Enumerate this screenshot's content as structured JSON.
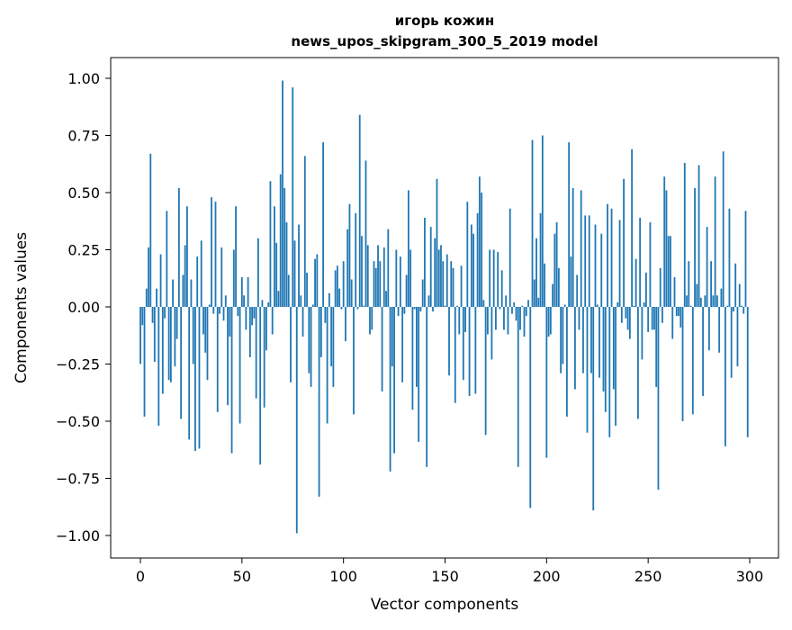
{
  "chart_data": {
    "type": "bar",
    "title": "игорь кожин",
    "subtitle": "news_upos_skipgram_300_5_2019 model",
    "xlabel": "Vector components",
    "ylabel": "Components values",
    "xlim": [
      -15,
      315
    ],
    "ylim": [
      -1.1,
      1.08
    ],
    "xticks": [
      0,
      50,
      100,
      150,
      200,
      250,
      300
    ],
    "xtick_labels": [
      "0",
      "50",
      "100",
      "150",
      "200",
      "250",
      "300"
    ],
    "yticks": [
      1.0,
      0.75,
      0.5,
      0.25,
      0.0,
      -0.25,
      -0.5,
      -0.75,
      -1.0
    ],
    "ytick_labels": [
      "1.00",
      "0.75",
      "0.50",
      "0.25",
      "0.00",
      "−0.25",
      "−0.50",
      "−0.75",
      "−1.00"
    ],
    "grid": false,
    "bar_color": "#1f77b4",
    "values": [
      -0.25,
      -0.08,
      -0.48,
      0.08,
      0.26,
      0.67,
      -0.07,
      -0.24,
      0.08,
      -0.52,
      0.23,
      -0.38,
      -0.05,
      0.42,
      -0.32,
      -0.33,
      0.12,
      -0.26,
      -0.14,
      0.52,
      -0.49,
      0.14,
      0.27,
      0.44,
      -0.58,
      0.12,
      -0.25,
      -0.63,
      0.22,
      -0.62,
      0.29,
      -0.12,
      -0.2,
      -0.32,
      0.01,
      0.48,
      -0.03,
      0.46,
      -0.46,
      -0.03,
      0.26,
      -0.06,
      0.05,
      -0.43,
      -0.13,
      -0.64,
      0.25,
      0.44,
      -0.04,
      -0.51,
      0.13,
      0.05,
      -0.1,
      0.13,
      -0.22,
      -0.08,
      -0.05,
      -0.4,
      0.3,
      -0.69,
      0.03,
      -0.44,
      -0.19,
      0.02,
      0.55,
      -0.12,
      0.44,
      0.28,
      0.07,
      0.58,
      0.99,
      0.52,
      0.37,
      0.14,
      -0.33,
      0.96,
      0.29,
      -0.99,
      0.36,
      0.05,
      -0.13,
      0.66,
      0.15,
      -0.29,
      -0.35,
      0.01,
      0.21,
      0.23,
      -0.83,
      -0.22,
      0.72,
      -0.07,
      -0.51,
      0.06,
      -0.26,
      -0.35,
      0.16,
      0.18,
      0.08,
      -0.01,
      0.2,
      -0.15,
      0.34,
      0.45,
      0.12,
      -0.47,
      0.41,
      -0.01,
      0.84,
      0.31,
      0.005,
      0.64,
      0.27,
      -0.12,
      -0.1,
      0.2,
      0.17,
      0.27,
      0.2,
      -0.37,
      0.26,
      0.07,
      0.34,
      -0.72,
      -0.26,
      -0.64,
      0.25,
      -0.04,
      0.22,
      -0.33,
      -0.03,
      0.14,
      0.51,
      0.25,
      -0.45,
      -0.01,
      -0.35,
      -0.59,
      -0.02,
      0.12,
      0.39,
      -0.7,
      0.05,
      0.35,
      -0.02,
      0.3,
      0.56,
      0.25,
      0.27,
      0.2,
      0.005,
      0.23,
      -0.3,
      0.2,
      0.17,
      -0.42,
      0.005,
      -0.12,
      0.18,
      -0.32,
      -0.11,
      0.46,
      -0.39,
      0.36,
      0.32,
      -0.38,
      0.41,
      0.57,
      0.5,
      0.03,
      -0.56,
      -0.12,
      0.25,
      -0.23,
      0.25,
      -0.1,
      0.24,
      -0.01,
      0.16,
      -0.1,
      0.05,
      -0.12,
      0.43,
      -0.03,
      0.02,
      -0.06,
      -0.7,
      -0.1,
      0.005,
      -0.13,
      -0.04,
      0.03,
      -0.88,
      0.73,
      0.12,
      0.3,
      0.04,
      0.41,
      0.75,
      0.19,
      -0.66,
      -0.13,
      -0.12,
      0.1,
      0.32,
      0.37,
      0.17,
      -0.29,
      -0.25,
      0.01,
      -0.48,
      0.72,
      0.22,
      0.52,
      -0.36,
      0.14,
      -0.1,
      0.51,
      -0.29,
      0.4,
      -0.55,
      0.4,
      -0.29,
      -0.89,
      0.36,
      0.01,
      -0.31,
      0.32,
      -0.37,
      -0.46,
      0.45,
      -0.57,
      0.43,
      -0.36,
      -0.52,
      0.02,
      0.38,
      -0.07,
      0.56,
      -0.05,
      -0.1,
      -0.14,
      0.69,
      0.005,
      0.21,
      -0.49,
      0.39,
      -0.23,
      0.02,
      0.15,
      -0.11,
      0.37,
      -0.1,
      -0.1,
      -0.35,
      -0.8,
      0.17,
      -0.07,
      0.57,
      0.51,
      0.31,
      0.31,
      -0.14,
      0.13,
      -0.04,
      -0.04,
      -0.09,
      -0.5,
      0.63,
      0.05,
      0.2,
      0.005,
      -0.47,
      0.52,
      0.1,
      0.62,
      0.04,
      -0.39,
      0.05,
      0.35,
      -0.19,
      0.2,
      0.05,
      0.57,
      0.05,
      -0.2,
      0.08,
      0.68,
      -0.61,
      0.005,
      0.43,
      -0.31,
      -0.02,
      0.19,
      -0.26,
      0.1,
      0.005,
      -0.03,
      0.42,
      -0.57
    ]
  }
}
